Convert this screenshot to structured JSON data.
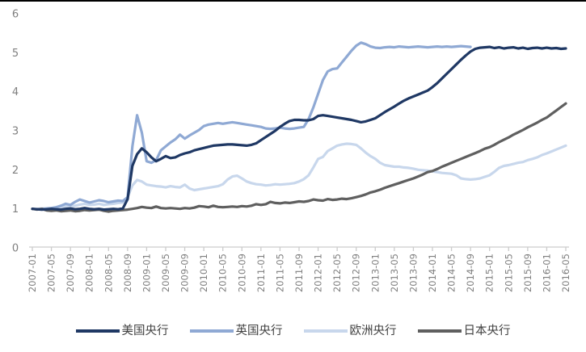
{
  "page": {
    "background_color": "#ffffff",
    "top_border_color": "#000000"
  },
  "chart_data": {
    "type": "line",
    "title": "",
    "x_start": "2007-01",
    "x_frequency": "monthly",
    "x_tick_labels": [
      "2007-01",
      "2007-05",
      "2007-09",
      "2008-01",
      "2008-05",
      "2008-09",
      "2009-01",
      "2009-05",
      "2009-09",
      "2010-01",
      "2010-05",
      "2010-09",
      "2011-01",
      "2011-05",
      "2011-09",
      "2012-01",
      "2012-05",
      "2012-09",
      "2013-01",
      "2013-05",
      "2013-09",
      "2014-01",
      "2014-05",
      "2014-09",
      "2015-01",
      "2015-05",
      "2015-09",
      "2016-01",
      "2016-05"
    ],
    "x_tick_step_months": 4,
    "y_ticks": [
      0,
      1,
      2,
      3,
      4,
      5,
      6
    ],
    "ylim": [
      0,
      6
    ],
    "grid": false,
    "legend_position": "bottom",
    "axis_label_color": "#7f7f7f",
    "axis_line_color": "#cccccc",
    "legend_text_color": "#404040",
    "series": [
      {
        "id": "us",
        "name": "美国央行",
        "color": "#1F3864",
        "values": [
          1.0,
          0.99,
          0.98,
          0.99,
          1.0,
          0.99,
          0.98,
          1.0,
          1.01,
          0.99,
          1.0,
          1.02,
          1.0,
          0.99,
          1.0,
          0.98,
          0.99,
          1.0,
          0.99,
          1.01,
          1.25,
          2.1,
          2.4,
          2.55,
          2.45,
          2.32,
          2.22,
          2.28,
          2.35,
          2.3,
          2.32,
          2.38,
          2.42,
          2.45,
          2.5,
          2.53,
          2.56,
          2.59,
          2.62,
          2.63,
          2.64,
          2.65,
          2.65,
          2.64,
          2.63,
          2.62,
          2.64,
          2.68,
          2.76,
          2.84,
          2.92,
          3.0,
          3.1,
          3.18,
          3.25,
          3.28,
          3.28,
          3.27,
          3.27,
          3.3,
          3.38,
          3.4,
          3.38,
          3.36,
          3.34,
          3.32,
          3.3,
          3.28,
          3.25,
          3.22,
          3.24,
          3.28,
          3.32,
          3.4,
          3.48,
          3.55,
          3.62,
          3.7,
          3.77,
          3.83,
          3.88,
          3.93,
          3.98,
          4.03,
          4.12,
          4.22,
          4.34,
          4.46,
          4.58,
          4.7,
          4.82,
          4.93,
          5.03,
          5.1,
          5.13,
          5.14,
          5.15,
          5.12,
          5.14,
          5.11,
          5.13,
          5.14,
          5.11,
          5.13,
          5.1,
          5.12,
          5.13,
          5.11,
          5.13,
          5.11,
          5.12,
          5.1,
          5.11
        ]
      },
      {
        "id": "uk",
        "name": "英国央行",
        "color": "#8FA9D4",
        "values": [
          1.0,
          0.99,
          1.0,
          1.01,
          1.02,
          1.04,
          1.08,
          1.13,
          1.1,
          1.18,
          1.24,
          1.2,
          1.16,
          1.19,
          1.22,
          1.2,
          1.17,
          1.19,
          1.21,
          1.2,
          1.3,
          2.6,
          3.4,
          2.95,
          2.22,
          2.18,
          2.25,
          2.5,
          2.6,
          2.7,
          2.78,
          2.9,
          2.8,
          2.88,
          2.95,
          3.02,
          3.12,
          3.16,
          3.18,
          3.2,
          3.18,
          3.2,
          3.22,
          3.2,
          3.18,
          3.16,
          3.14,
          3.12,
          3.1,
          3.06,
          3.05,
          3.06,
          3.08,
          3.06,
          3.05,
          3.06,
          3.08,
          3.1,
          3.3,
          3.6,
          3.95,
          4.3,
          4.52,
          4.58,
          4.6,
          4.75,
          4.9,
          5.05,
          5.18,
          5.26,
          5.22,
          5.16,
          5.13,
          5.12,
          5.14,
          5.15,
          5.14,
          5.16,
          5.15,
          5.14,
          5.15,
          5.16,
          5.15,
          5.14,
          5.15,
          5.16,
          5.15,
          5.16,
          5.15,
          5.16,
          5.17,
          5.16,
          5.15,
          null,
          null,
          null,
          null,
          null,
          null,
          null,
          null,
          null,
          null,
          null,
          null,
          null,
          null,
          null,
          null,
          null,
          null,
          null,
          null
        ]
      },
      {
        "id": "ecb",
        "name": "欧洲央行",
        "color": "#C8D7EC",
        "values": [
          1.0,
          1.0,
          1.01,
          1.0,
          1.01,
          1.02,
          1.04,
          1.07,
          1.06,
          1.08,
          1.11,
          1.13,
          1.1,
          1.11,
          1.13,
          1.1,
          1.12,
          1.13,
          1.15,
          1.16,
          1.3,
          1.6,
          1.74,
          1.7,
          1.62,
          1.6,
          1.58,
          1.57,
          1.55,
          1.58,
          1.56,
          1.55,
          1.62,
          1.52,
          1.48,
          1.5,
          1.52,
          1.54,
          1.56,
          1.58,
          1.63,
          1.75,
          1.83,
          1.85,
          1.78,
          1.7,
          1.66,
          1.63,
          1.62,
          1.6,
          1.61,
          1.63,
          1.62,
          1.63,
          1.64,
          1.66,
          1.7,
          1.76,
          1.86,
          2.06,
          2.28,
          2.33,
          2.48,
          2.55,
          2.62,
          2.65,
          2.67,
          2.66,
          2.64,
          2.55,
          2.44,
          2.35,
          2.28,
          2.18,
          2.12,
          2.1,
          2.08,
          2.08,
          2.06,
          2.05,
          2.03,
          2.0,
          1.99,
          1.98,
          1.96,
          1.94,
          1.92,
          1.91,
          1.9,
          1.86,
          1.78,
          1.76,
          1.75,
          1.76,
          1.78,
          1.82,
          1.86,
          1.95,
          2.05,
          2.1,
          2.12,
          2.15,
          2.18,
          2.2,
          2.25,
          2.28,
          2.32,
          2.38,
          2.42,
          2.47,
          2.52,
          2.57,
          2.62
        ]
      },
      {
        "id": "japan",
        "name": "日本央行",
        "color": "#5F5F5F",
        "values": [
          1.0,
          0.98,
          1.0,
          0.96,
          0.95,
          0.96,
          0.94,
          0.95,
          0.96,
          0.94,
          0.95,
          0.97,
          0.96,
          0.97,
          0.98,
          0.95,
          0.93,
          0.95,
          0.96,
          0.97,
          0.98,
          1.0,
          1.02,
          1.05,
          1.03,
          1.02,
          1.06,
          1.02,
          1.01,
          1.02,
          1.01,
          1.0,
          1.02,
          1.01,
          1.03,
          1.07,
          1.06,
          1.04,
          1.08,
          1.05,
          1.04,
          1.05,
          1.06,
          1.05,
          1.07,
          1.06,
          1.08,
          1.12,
          1.1,
          1.12,
          1.18,
          1.15,
          1.14,
          1.16,
          1.15,
          1.17,
          1.19,
          1.18,
          1.2,
          1.24,
          1.22,
          1.21,
          1.25,
          1.23,
          1.24,
          1.26,
          1.25,
          1.27,
          1.3,
          1.33,
          1.37,
          1.42,
          1.45,
          1.49,
          1.54,
          1.58,
          1.62,
          1.66,
          1.7,
          1.74,
          1.78,
          1.83,
          1.88,
          1.94,
          1.97,
          2.02,
          2.08,
          2.13,
          2.18,
          2.23,
          2.28,
          2.33,
          2.38,
          2.43,
          2.48,
          2.54,
          2.58,
          2.64,
          2.71,
          2.77,
          2.83,
          2.9,
          2.96,
          3.02,
          3.09,
          3.15,
          3.21,
          3.28,
          3.34,
          3.43,
          3.52,
          3.61,
          3.7
        ]
      }
    ]
  }
}
